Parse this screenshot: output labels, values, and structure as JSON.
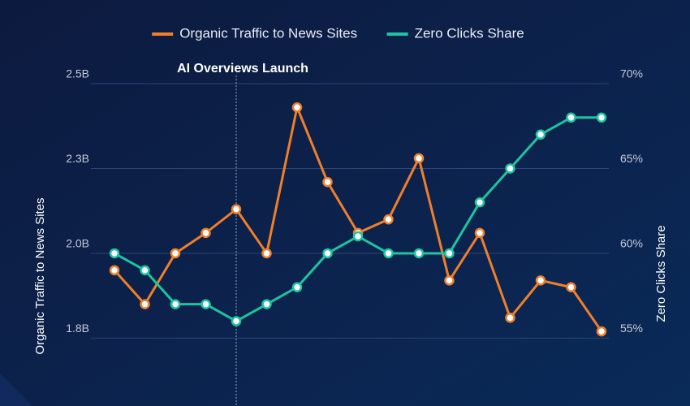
{
  "chart_data": {
    "type": "line",
    "legend": "top",
    "categories": [
      null,
      null,
      null,
      null,
      null,
      null,
      null,
      null,
      null,
      null,
      null,
      null,
      null,
      null,
      null,
      null,
      null
    ],
    "series": [
      {
        "name": "Organic Traffic to News Sites",
        "color": "#f07f2a",
        "axis": "y",
        "values": [
          1.95,
          1.85,
          2.0,
          2.06,
          2.13,
          2.0,
          2.43,
          2.21,
          2.06,
          2.1,
          2.28,
          1.92,
          2.06,
          1.81,
          1.92,
          1.9,
          1.77
        ]
      },
      {
        "name": "Zero Clicks Share",
        "color": "#1cc4a0",
        "axis": "y2",
        "values": [
          60,
          59,
          57,
          57,
          56,
          57,
          58,
          60,
          61,
          60,
          60,
          60,
          63,
          65,
          67,
          68,
          68
        ]
      }
    ],
    "ylabel": "Organic Traffic to News Sites",
    "y2label": "Zero Clicks Share",
    "ylim": [
      1.55,
      2.5
    ],
    "yticks": [
      {
        "value": 1.75,
        "label": "1.8B"
      },
      {
        "value": 2.0,
        "label": "2.0B"
      },
      {
        "value": 2.25,
        "label": "2.3B"
      },
      {
        "value": 2.5,
        "label": "2.5B"
      }
    ],
    "y2lim": [
      51,
      70
    ],
    "y2ticks": [
      {
        "value": 55,
        "label": "55%"
      },
      {
        "value": 60,
        "label": "60%"
      },
      {
        "value": 65,
        "label": "65%"
      },
      {
        "value": 70,
        "label": "70%"
      }
    ],
    "grid": true,
    "annotation": {
      "text": "AI Overviews Launch",
      "category_index": 4
    }
  }
}
